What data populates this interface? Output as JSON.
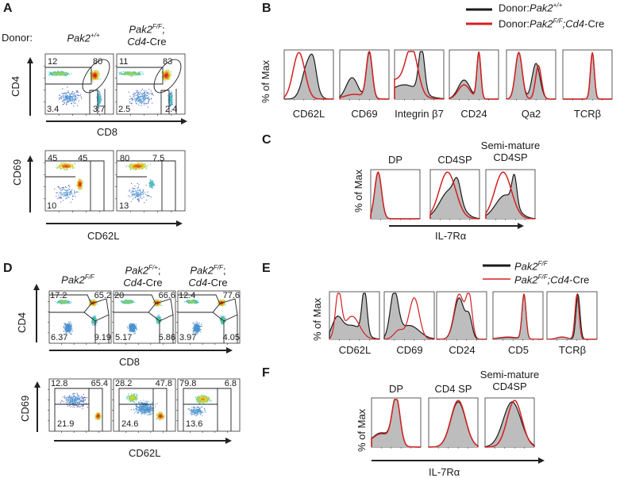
{
  "figure": {
    "panels": {
      "A": {
        "letter": "A",
        "donor_label": "Donor:",
        "columns": [
          {
            "name": "Pak2",
            "sup": "+/+",
            "suffix": ""
          },
          {
            "name": "Pak2",
            "sup": "F/F",
            "suffix": ";",
            "line2_italic": "Cd4",
            "line2": "-Cre"
          }
        ],
        "cd4_cd8": {
          "y_axis": "CD4",
          "x_axis": "CD8",
          "plots": [
            {
              "top_left": "12",
              "top_right": "80",
              "bottom_left": "3.4",
              "bottom_right": "3.7"
            },
            {
              "top_left": "11",
              "top_right": "83",
              "bottom_left": "2.5",
              "bottom_right": "2.4"
            }
          ]
        },
        "cd69_cd62l": {
          "y_axis": "CD69",
          "x_axis": "CD62L",
          "plots": [
            {
              "top_left": "45",
              "top_right": "45",
              "bottom_left": "10"
            },
            {
              "top_left": "80",
              "top_right": "7.5",
              "bottom_left": "13"
            }
          ]
        }
      },
      "B": {
        "letter": "B",
        "legend": [
          {
            "prefix": "Donor:",
            "name": "Pak2",
            "sup": "+/+",
            "rest_italic": "",
            "rest": "",
            "color": "#1a1a1a"
          },
          {
            "prefix": "Donor:",
            "name": "Pak2",
            "sup": "F/F",
            "rest_italic": ";Cd4",
            "rest": "-Cre",
            "color": "#d42020"
          }
        ],
        "y_axis": "% of Max",
        "markers": [
          "CD62L",
          "CD69",
          "Integrin β7",
          "CD24",
          "Qa2",
          "TCRβ"
        ]
      },
      "C": {
        "letter": "C",
        "y_axis": "% of Max",
        "x_axis": "IL-7Rα",
        "titles": [
          [
            "DP"
          ],
          [
            "CD4SP"
          ],
          [
            "Semi-mature",
            "CD4SP"
          ]
        ]
      },
      "D": {
        "letter": "D",
        "columns": [
          {
            "name": "Pak2",
            "sup": "F/F",
            "suffix": ""
          },
          {
            "name": "Pak2",
            "sup": "F/+",
            "suffix": ";",
            "line2_italic": "Cd4",
            "line2": "-Cre"
          },
          {
            "name": "Pak2",
            "sup": "F/F",
            "suffix": ";",
            "line2_italic": "Cd4",
            "line2": "-Cre"
          }
        ],
        "cd4_cd8": {
          "y_axis": "CD4",
          "x_axis": "CD8",
          "plots": [
            {
              "top_left": "17.2",
              "top_right": "65.2",
              "bottom_left": "6.37",
              "bottom_right": "9.19"
            },
            {
              "top_left": "20",
              "top_right": "66.6",
              "bottom_left": "5.17",
              "bottom_right": "5.86"
            },
            {
              "top_left": "12.4",
              "top_right": "77.6",
              "bottom_left": "3.97",
              "bottom_right": "4.05"
            }
          ]
        },
        "cd69_cd62l": {
          "y_axis": "CD69",
          "x_axis": "CD62L",
          "plots": [
            {
              "top_left": "12.8",
              "top_right": "65.4",
              "bottom_left": "21.9"
            },
            {
              "top_left": "28.2",
              "top_right": "47.8",
              "bottom_left": "24.6"
            },
            {
              "top_left": "79.8",
              "top_right": "6.8",
              "bottom_left": "13.6"
            }
          ]
        }
      },
      "E": {
        "letter": "E",
        "legend": [
          {
            "prefix": "",
            "name": "Pak2",
            "sup": "F/F",
            "rest_italic": "",
            "rest": "",
            "color": "#1a1a1a"
          },
          {
            "prefix": "",
            "name": "Pak2",
            "sup": "F/F",
            "rest_italic": ";Cd4",
            "rest": "-Cre",
            "color": "#d42020"
          }
        ],
        "y_axis": "% of Max",
        "markers": [
          "CD62L",
          "CD69",
          "CD24",
          "CD5",
          "TCRβ"
        ]
      },
      "F": {
        "letter": "F",
        "y_axis": "% of Max",
        "x_axis": "IL-7Rα",
        "titles": [
          [
            "DP"
          ],
          [
            "CD4 SP"
          ],
          [
            "Semi-mature",
            "CD4SP"
          ]
        ]
      }
    },
    "colors": {
      "control": "#1a1a1a",
      "knockout": "#d42020",
      "fill": "#bdbdbd"
    }
  },
  "chart_data": [
    {
      "type": "scatter",
      "title": "A: CD4 vs CD8 (donor thymocytes)",
      "xlabel": "CD8",
      "ylabel": "CD4",
      "series": [
        {
          "name": "Pak2+/+",
          "quadrants": {
            "CD4SP": 12,
            "DP": 80,
            "DN": 3.4,
            "CD8SP": 3.7
          }
        },
        {
          "name": "Pak2F/F;Cd4-Cre",
          "quadrants": {
            "CD4SP": 11,
            "DP": 83,
            "DN": 2.5,
            "CD8SP": 2.4
          }
        }
      ]
    },
    {
      "type": "scatter",
      "title": "A: CD69 vs CD62L",
      "xlabel": "CD62L",
      "ylabel": "CD69",
      "series": [
        {
          "name": "Pak2+/+",
          "gates": {
            "CD69hi_CD62Llo": 45,
            "CD62Lhi": 45,
            "CD69lo_CD62Llo": 10
          }
        },
        {
          "name": "Pak2F/F;Cd4-Cre",
          "gates": {
            "CD69hi_CD62Llo": 80,
            "CD62Lhi": 7.5,
            "CD69lo_CD62Llo": 13
          }
        }
      ]
    },
    {
      "type": "line",
      "title": "B: histograms",
      "ylabel": "% of Max",
      "categories": [
        "CD62L",
        "CD69",
        "Integrin β7",
        "CD24",
        "Qa2",
        "TCRβ"
      ],
      "series": [
        {
          "name": "Donor:Pak2+/+"
        },
        {
          "name": "Donor:Pak2F/F;Cd4-Cre"
        }
      ]
    },
    {
      "type": "line",
      "title": "C: IL-7Rα histograms",
      "xlabel": "IL-7Rα",
      "ylabel": "% of Max",
      "categories": [
        "DP",
        "CD4SP",
        "Semi-mature CD4SP"
      ]
    },
    {
      "type": "scatter",
      "title": "D: CD4 vs CD8",
      "xlabel": "CD8",
      "ylabel": "CD4",
      "series": [
        {
          "name": "Pak2F/F",
          "quadrants": {
            "CD4SP": 17.2,
            "DP": 65.2,
            "DN": 6.37,
            "CD8SP": 9.19
          }
        },
        {
          "name": "Pak2F/+;Cd4-Cre",
          "quadrants": {
            "CD4SP": 20,
            "DP": 66.6,
            "DN": 5.17,
            "CD8SP": 5.86
          }
        },
        {
          "name": "Pak2F/F;Cd4-Cre",
          "quadrants": {
            "CD4SP": 12.4,
            "DP": 77.6,
            "DN": 3.97,
            "CD8SP": 4.05
          }
        }
      ]
    },
    {
      "type": "scatter",
      "title": "D: CD69 vs CD62L",
      "xlabel": "CD62L",
      "ylabel": "CD69",
      "series": [
        {
          "name": "Pak2F/F",
          "gates": {
            "CD69hi_CD62Llo": 12.8,
            "CD62Lhi": 65.4,
            "CD69lo_CD62Llo": 21.9
          }
        },
        {
          "name": "Pak2F/+;Cd4-Cre",
          "gates": {
            "CD69hi_CD62Llo": 28.2,
            "CD62Lhi": 47.8,
            "CD69lo_CD62Llo": 24.6
          }
        },
        {
          "name": "Pak2F/F;Cd4-Cre",
          "gates": {
            "CD69hi_CD62Llo": 79.8,
            "CD62Lhi": 6.8,
            "CD69lo_CD62Llo": 13.6
          }
        }
      ]
    },
    {
      "type": "line",
      "title": "E: histograms",
      "ylabel": "% of Max",
      "categories": [
        "CD62L",
        "CD69",
        "CD24",
        "CD5",
        "TCRβ"
      ],
      "series": [
        {
          "name": "Pak2F/F"
        },
        {
          "name": "Pak2F/F;Cd4-Cre"
        }
      ]
    },
    {
      "type": "line",
      "title": "F: IL-7Rα histograms",
      "xlabel": "IL-7Rα",
      "ylabel": "% of Max",
      "categories": [
        "DP",
        "CD4 SP",
        "Semi-mature CD4SP"
      ]
    }
  ]
}
